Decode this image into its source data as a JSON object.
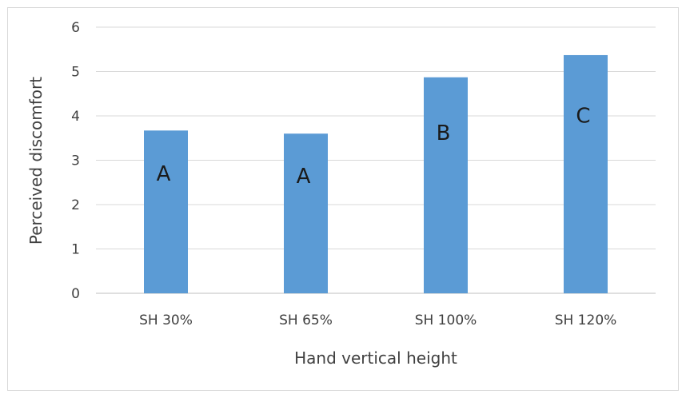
{
  "chart_data": {
    "type": "bar",
    "categories": [
      "SH 30%",
      "SH 65%",
      "SH 100%",
      "SH 120%"
    ],
    "values": [
      3.67,
      3.6,
      4.87,
      5.37
    ],
    "annotations": [
      "A",
      "A",
      "B",
      "C"
    ],
    "title": "",
    "xlabel": "Hand vertical height",
    "ylabel": "Perceived discomfort",
    "ylim": [
      0,
      6
    ],
    "yticks": [
      "0",
      "1",
      "2",
      "3",
      "4",
      "5",
      "6"
    ],
    "grid": true,
    "legend": "none",
    "bar_color": "#5b9bd5",
    "grid_color": "#d9d9d9"
  }
}
